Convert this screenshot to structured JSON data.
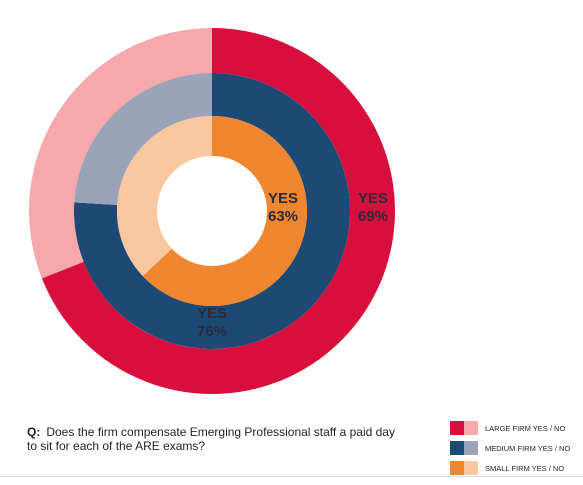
{
  "chart_data": {
    "type": "donut",
    "rings": [
      {
        "name": "LARGE FIRM YES / NO",
        "yes": 69,
        "no": 31,
        "yes_color": "#d80f3d",
        "no_color": "#f6a8ab",
        "label_line1": "YES",
        "label_line2": "69%"
      },
      {
        "name": "MEDIUM FIRM YES / NO",
        "yes": 76,
        "no": 24,
        "yes_color": "#1d4a74",
        "no_color": "#9aa3b8",
        "label_line1": "YES",
        "label_line2": "76%"
      },
      {
        "name": "SMALL FIRM YES / NO",
        "yes": 63,
        "no": 37,
        "yes_color": "#f0862f",
        "no_color": "#f9c8a0",
        "label_line1": "YES",
        "label_line2": "63%"
      }
    ],
    "label_color": "#2b2b3a"
  },
  "question": {
    "prefix": "Q:",
    "text": "Does the firm compensate Emerging Professional staff a paid day to sit for each of the ARE exams?"
  },
  "legend": [
    {
      "label": "LARGE FIRM YES / NO",
      "yes_color": "#d80f3d",
      "no_color": "#f6a8ab"
    },
    {
      "label": "MEDIUM FIRM YES / NO",
      "yes_color": "#1d4a74",
      "no_color": "#9aa3b8"
    },
    {
      "label": "SMALL FIRM YES / NO",
      "yes_color": "#f0862f",
      "no_color": "#f9c8a0"
    }
  ]
}
